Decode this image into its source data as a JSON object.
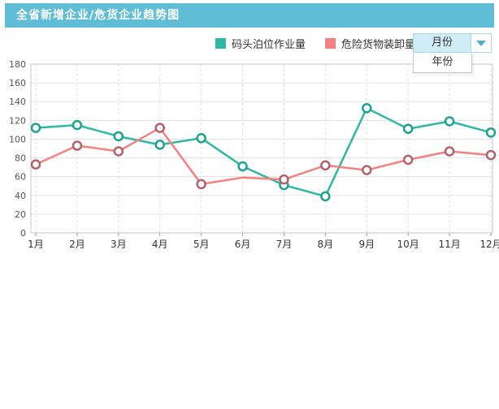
{
  "header": {
    "title": "全省新增企业/危货企业趋势图",
    "bar_color": "#5FBDD6"
  },
  "dropdown": {
    "selected": "月份",
    "options": [
      "月份",
      "年份"
    ],
    "selected_bg": "#CFECF7",
    "border_color": "#A5D9EB",
    "arrow_color": "#4FB0CE"
  },
  "chart_data": {
    "type": "line",
    "categories": [
      "1月",
      "2月",
      "3月",
      "4月",
      "5月",
      "6月",
      "7月",
      "8月",
      "9月",
      "10月",
      "11月",
      "12月"
    ],
    "series": [
      {
        "name": "码头泊位作业量",
        "color": "#2FB8A4",
        "marker_stroke": "#1BA390",
        "values": [
          112,
          115,
          103,
          94,
          101,
          71,
          51,
          39,
          133,
          111,
          119,
          107
        ]
      },
      {
        "name": "危险货物装卸量",
        "color": "#F58080",
        "marker_stroke": "#B6606B",
        "values": [
          73,
          93,
          87,
          112,
          52,
          59,
          57,
          72,
          67,
          78,
          87,
          83
        ],
        "marker_hidden_indices": [
          5
        ]
      }
    ],
    "ylim": [
      0,
      180
    ],
    "ytick_step": 20,
    "grid": true,
    "grid_h_color": "#E3E3E3",
    "grid_v_color": "#E0E0E0",
    "plot_border_color": "#C6C6C6",
    "axis_label_color": "#555555",
    "xlabel": "",
    "ylabel": "",
    "legend_position": "top"
  }
}
